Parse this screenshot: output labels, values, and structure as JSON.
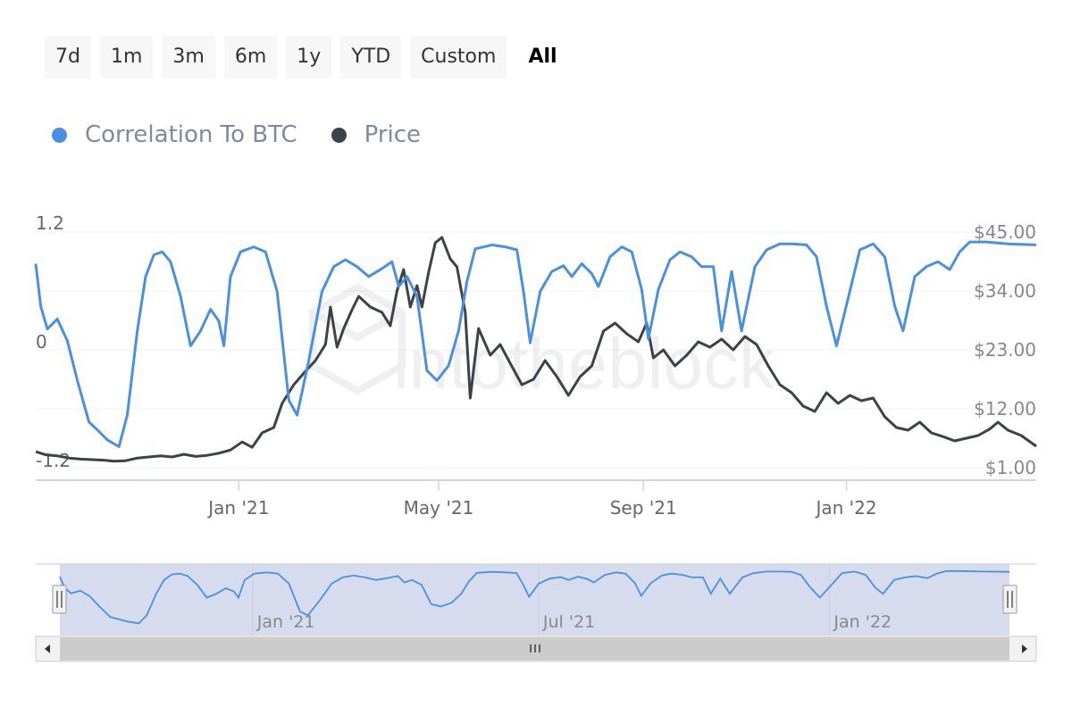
{
  "range_selector": {
    "buttons": [
      {
        "label": "7d"
      },
      {
        "label": "1m"
      },
      {
        "label": "3m"
      },
      {
        "label": "6m"
      },
      {
        "label": "1y"
      },
      {
        "label": "YTD"
      },
      {
        "label": "Custom"
      },
      {
        "label": "All"
      }
    ],
    "active_label": "All"
  },
  "legend": [
    {
      "label": "Correlation To BTC",
      "color": "#4a90e2"
    },
    {
      "label": "Price",
      "color": "#3d4148"
    }
  ],
  "watermark_text": "intotheblock",
  "colors": {
    "correlation": "#4a90e2",
    "price": "#3d4148",
    "navigator_fill": "#d6dced",
    "axis_label": "#666666",
    "price_axis_label": "#888888"
  },
  "chart_data": {
    "type": "line",
    "title": "",
    "x_axis": {
      "range": [
        "2020-09-01",
        "2022-04-25"
      ],
      "tick_labels": [
        {
          "date": "2021-01-01",
          "label": "Jan '21"
        },
        {
          "date": "2021-05-01",
          "label": "May '21"
        },
        {
          "date": "2021-09-01",
          "label": "Sep '21"
        },
        {
          "date": "2022-01-01",
          "label": "Jan '22"
        }
      ]
    },
    "y_axis_left": {
      "range": [
        -1.2,
        1.2
      ],
      "tick_labels": [
        {
          "value": 1.2,
          "label": "1.2"
        },
        {
          "value": 0,
          "label": "0"
        },
        {
          "value": -1.2,
          "label": "-1.2"
        }
      ]
    },
    "y_axis_right": {
      "range": [
        1,
        45
      ],
      "tick_labels": [
        {
          "value": 45,
          "label": "$45.00"
        },
        {
          "value": 34,
          "label": "$34.00"
        },
        {
          "value": 23,
          "label": "$23.00"
        },
        {
          "value": 12,
          "label": "$12.00"
        },
        {
          "value": 1,
          "label": "$1.00"
        }
      ]
    },
    "grid": true,
    "legend_position": "top-left",
    "series": [
      {
        "name": "Correlation To BTC",
        "axis": "left",
        "points": [
          [
            "2020-09-01",
            0.88
          ],
          [
            "2020-09-04",
            0.45
          ],
          [
            "2020-09-08",
            0.22
          ],
          [
            "2020-09-14",
            0.32
          ],
          [
            "2020-09-20",
            0.1
          ],
          [
            "2020-09-26",
            -0.3
          ],
          [
            "2020-10-03",
            -0.72
          ],
          [
            "2020-10-08",
            -0.8
          ],
          [
            "2020-10-14",
            -0.9
          ],
          [
            "2020-10-21",
            -0.97
          ],
          [
            "2020-10-26",
            -0.65
          ],
          [
            "2020-11-01",
            0.2
          ],
          [
            "2020-11-06",
            0.75
          ],
          [
            "2020-11-11",
            0.97
          ],
          [
            "2020-11-16",
            1.0
          ],
          [
            "2020-11-21",
            0.9
          ],
          [
            "2020-11-27",
            0.55
          ],
          [
            "2020-12-03",
            0.05
          ],
          [
            "2020-12-09",
            0.2
          ],
          [
            "2020-12-15",
            0.42
          ],
          [
            "2020-12-20",
            0.3
          ],
          [
            "2020-12-23",
            0.05
          ],
          [
            "2020-12-27",
            0.75
          ],
          [
            "2021-01-02",
            1.0
          ],
          [
            "2021-01-10",
            1.05
          ],
          [
            "2021-01-17",
            1.0
          ],
          [
            "2021-01-24",
            0.6
          ],
          [
            "2021-01-31",
            -0.5
          ],
          [
            "2021-02-05",
            -0.65
          ],
          [
            "2021-02-12",
            -0.1
          ],
          [
            "2021-02-20",
            0.6
          ],
          [
            "2021-02-27",
            0.85
          ],
          [
            "2021-03-06",
            0.92
          ],
          [
            "2021-03-13",
            0.85
          ],
          [
            "2021-03-20",
            0.75
          ],
          [
            "2021-03-27",
            0.82
          ],
          [
            "2021-04-03",
            0.9
          ],
          [
            "2021-04-07",
            0.65
          ],
          [
            "2021-04-12",
            0.75
          ],
          [
            "2021-04-18",
            0.55
          ],
          [
            "2021-04-24",
            -0.2
          ],
          [
            "2021-04-30",
            -0.3
          ],
          [
            "2021-05-07",
            -0.15
          ],
          [
            "2021-05-13",
            0.2
          ],
          [
            "2021-05-18",
            0.7
          ],
          [
            "2021-05-23",
            1.03
          ],
          [
            "2021-06-02",
            1.07
          ],
          [
            "2021-06-10",
            1.05
          ],
          [
            "2021-06-17",
            1.02
          ],
          [
            "2021-06-21",
            0.6
          ],
          [
            "2021-06-25",
            0.08
          ],
          [
            "2021-07-01",
            0.6
          ],
          [
            "2021-07-08",
            0.8
          ],
          [
            "2021-07-15",
            0.86
          ],
          [
            "2021-07-20",
            0.75
          ],
          [
            "2021-07-26",
            0.88
          ],
          [
            "2021-08-01",
            0.78
          ],
          [
            "2021-08-05",
            0.65
          ],
          [
            "2021-08-12",
            0.95
          ],
          [
            "2021-08-19",
            1.05
          ],
          [
            "2021-08-25",
            1.0
          ],
          [
            "2021-08-31",
            0.62
          ],
          [
            "2021-09-04",
            0.12
          ],
          [
            "2021-09-10",
            0.62
          ],
          [
            "2021-09-17",
            0.92
          ],
          [
            "2021-09-23",
            1.0
          ],
          [
            "2021-09-30",
            0.95
          ],
          [
            "2021-10-06",
            0.85
          ],
          [
            "2021-10-13",
            0.85
          ],
          [
            "2021-10-18",
            0.2
          ],
          [
            "2021-10-24",
            0.8
          ],
          [
            "2021-10-30",
            0.2
          ],
          [
            "2021-11-07",
            0.85
          ],
          [
            "2021-11-14",
            1.02
          ],
          [
            "2021-11-22",
            1.08
          ],
          [
            "2021-11-30",
            1.08
          ],
          [
            "2021-12-08",
            1.07
          ],
          [
            "2021-12-14",
            0.95
          ],
          [
            "2021-12-20",
            0.45
          ],
          [
            "2021-12-26",
            0.05
          ],
          [
            "2022-01-03",
            0.6
          ],
          [
            "2022-01-09",
            1.02
          ],
          [
            "2022-01-17",
            1.08
          ],
          [
            "2022-01-24",
            0.95
          ],
          [
            "2022-01-30",
            0.45
          ],
          [
            "2022-02-04",
            0.2
          ],
          [
            "2022-02-11",
            0.75
          ],
          [
            "2022-02-18",
            0.85
          ],
          [
            "2022-02-25",
            0.9
          ],
          [
            "2022-03-04",
            0.82
          ],
          [
            "2022-03-10",
            1.0
          ],
          [
            "2022-03-16",
            1.1
          ],
          [
            "2022-03-26",
            1.1
          ],
          [
            "2022-04-08",
            1.08
          ],
          [
            "2022-04-25",
            1.07
          ]
        ]
      },
      {
        "name": "Price",
        "axis": "right",
        "points": [
          [
            "2020-09-01",
            4.0
          ],
          [
            "2020-09-07",
            3.4
          ],
          [
            "2020-09-14",
            3.2
          ],
          [
            "2020-09-21",
            2.8
          ],
          [
            "2020-09-28",
            2.6
          ],
          [
            "2020-10-05",
            2.5
          ],
          [
            "2020-10-12",
            2.4
          ],
          [
            "2020-10-18",
            2.2
          ],
          [
            "2020-10-25",
            2.3
          ],
          [
            "2020-11-01",
            2.8
          ],
          [
            "2020-11-08",
            3.0
          ],
          [
            "2020-11-15",
            3.2
          ],
          [
            "2020-11-22",
            3.0
          ],
          [
            "2020-11-29",
            3.5
          ],
          [
            "2020-12-06",
            3.1
          ],
          [
            "2020-12-13",
            3.3
          ],
          [
            "2020-12-20",
            3.7
          ],
          [
            "2020-12-27",
            4.3
          ],
          [
            "2021-01-03",
            5.8
          ],
          [
            "2021-01-09",
            4.8
          ],
          [
            "2021-01-15",
            7.5
          ],
          [
            "2021-01-22",
            8.5
          ],
          [
            "2021-01-27",
            13.0
          ],
          [
            "2021-02-03",
            16.5
          ],
          [
            "2021-02-10",
            19.0
          ],
          [
            "2021-02-16",
            21.0
          ],
          [
            "2021-02-22",
            24.0
          ],
          [
            "2021-02-25",
            31.0
          ],
          [
            "2021-03-01",
            23.5
          ],
          [
            "2021-03-05",
            27.0
          ],
          [
            "2021-03-10",
            30.5
          ],
          [
            "2021-03-14",
            33.0
          ],
          [
            "2021-03-21",
            31.0
          ],
          [
            "2021-03-28",
            30.0
          ],
          [
            "2021-04-02",
            27.5
          ],
          [
            "2021-04-06",
            34.0
          ],
          [
            "2021-04-10",
            38.0
          ],
          [
            "2021-04-14",
            31.0
          ],
          [
            "2021-04-18",
            35.0
          ],
          [
            "2021-04-21",
            31.0
          ],
          [
            "2021-04-25",
            37.5
          ],
          [
            "2021-04-29",
            43.0
          ],
          [
            "2021-05-03",
            44.0
          ],
          [
            "2021-05-08",
            40.0
          ],
          [
            "2021-05-12",
            38.5
          ],
          [
            "2021-05-17",
            30.0
          ],
          [
            "2021-05-20",
            14.0
          ],
          [
            "2021-05-25",
            27.0
          ],
          [
            "2021-06-01",
            22.0
          ],
          [
            "2021-06-07",
            24.0
          ],
          [
            "2021-06-13",
            20.5
          ],
          [
            "2021-06-20",
            16.5
          ],
          [
            "2021-06-27",
            17.5
          ],
          [
            "2021-07-04",
            21.0
          ],
          [
            "2021-07-11",
            18.0
          ],
          [
            "2021-07-18",
            14.5
          ],
          [
            "2021-07-25",
            18.0
          ],
          [
            "2021-08-01",
            20.0
          ],
          [
            "2021-08-08",
            26.5
          ],
          [
            "2021-08-15",
            28.0
          ],
          [
            "2021-08-22",
            26.0
          ],
          [
            "2021-08-29",
            24.5
          ],
          [
            "2021-09-03",
            28.0
          ],
          [
            "2021-09-07",
            21.5
          ],
          [
            "2021-09-13",
            23.0
          ],
          [
            "2021-09-20",
            20.0
          ],
          [
            "2021-09-27",
            22.0
          ],
          [
            "2021-10-04",
            24.5
          ],
          [
            "2021-10-11",
            23.5
          ],
          [
            "2021-10-18",
            25.0
          ],
          [
            "2021-10-25",
            23.0
          ],
          [
            "2021-11-01",
            25.5
          ],
          [
            "2021-11-08",
            24.0
          ],
          [
            "2021-11-15",
            20.0
          ],
          [
            "2021-11-22",
            16.5
          ],
          [
            "2021-11-29",
            15.0
          ],
          [
            "2021-12-06",
            12.5
          ],
          [
            "2021-12-13",
            11.5
          ],
          [
            "2021-12-20",
            15.0
          ],
          [
            "2021-12-27",
            13.0
          ],
          [
            "2022-01-03",
            14.5
          ],
          [
            "2022-01-10",
            13.5
          ],
          [
            "2022-01-17",
            14.0
          ],
          [
            "2022-01-24",
            10.5
          ],
          [
            "2022-01-31",
            8.5
          ],
          [
            "2022-02-07",
            8.0
          ],
          [
            "2022-02-14",
            9.5
          ],
          [
            "2022-02-21",
            7.5
          ],
          [
            "2022-02-28",
            6.8
          ],
          [
            "2022-03-07",
            6.0
          ],
          [
            "2022-03-14",
            6.5
          ],
          [
            "2022-03-21",
            7.0
          ],
          [
            "2022-03-28",
            8.2
          ],
          [
            "2022-04-02",
            9.5
          ],
          [
            "2022-04-08",
            8.0
          ],
          [
            "2022-04-16",
            7.0
          ],
          [
            "2022-04-25",
            5.0
          ]
        ]
      }
    ],
    "navigator": {
      "tick_labels": [
        {
          "date": "2021-01-01",
          "label": "Jan '21"
        },
        {
          "date": "2021-07-01",
          "label": "Jul '21"
        },
        {
          "date": "2022-01-01",
          "label": "Jan '22"
        }
      ],
      "selected_range": [
        "2020-09-01",
        "2022-04-25"
      ]
    }
  }
}
